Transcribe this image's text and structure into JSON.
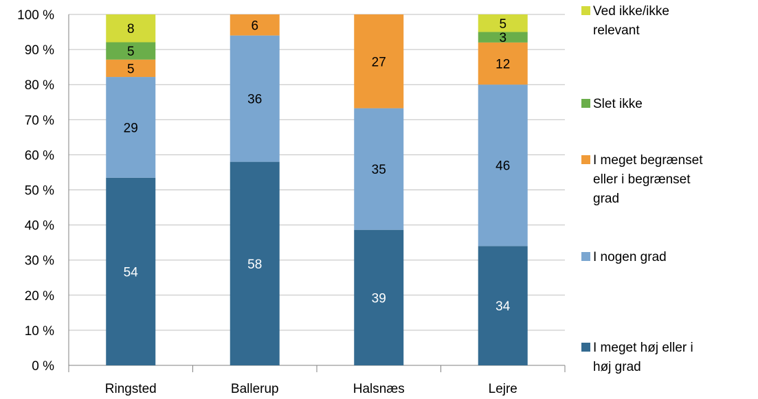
{
  "chart_data": {
    "type": "bar",
    "stacked": true,
    "percent": true,
    "categories": [
      "Ringsted",
      "Ballerup",
      "Halsnæs",
      "Lejre"
    ],
    "yaxis": {
      "ylim": [
        0,
        100
      ],
      "ticks": [
        0,
        10,
        20,
        30,
        40,
        50,
        60,
        70,
        80,
        90,
        100
      ],
      "tick_labels": [
        "0 %",
        "10 %",
        "20 %",
        "30 %",
        "40 %",
        "50 %",
        "60 %",
        "70 %",
        "80 %",
        "90 %",
        "100 %"
      ]
    },
    "grid": true,
    "legend_position": "right",
    "series": [
      {
        "name": "I meget høj eller i høj grad",
        "color": "#336A90",
        "label_color": "#FFFFFF",
        "values": [
          54,
          58,
          39,
          34
        ]
      },
      {
        "name": "I nogen grad",
        "color": "#7AA6D0",
        "label_color": "#000000",
        "values": [
          29,
          36,
          35,
          46
        ]
      },
      {
        "name": "I meget begrænset eller i begrænset grad",
        "color": "#F09B38",
        "label_color": "#000000",
        "values": [
          5,
          6,
          27,
          12
        ]
      },
      {
        "name": "Slet ikke",
        "color": "#6AAE4A",
        "label_color": "#000000",
        "values": [
          5,
          0,
          0,
          3
        ]
      },
      {
        "name": "Ved ikke/ikke relevant",
        "color": "#D3DB3B",
        "label_color": "#000000",
        "values": [
          8,
          0,
          0,
          5
        ]
      }
    ],
    "legend": [
      {
        "lines": [
          "Ved ikke/ikke",
          "relevant"
        ],
        "series": 4
      },
      {
        "lines": [
          "Slet ikke"
        ],
        "series": 3
      },
      {
        "lines": [
          "I meget begrænset",
          "eller i begrænset",
          "grad"
        ],
        "series": 2
      },
      {
        "lines": [
          "I nogen grad"
        ],
        "series": 1
      },
      {
        "lines": [
          "I meget høj eller i",
          "høj grad"
        ],
        "series": 0
      }
    ]
  }
}
